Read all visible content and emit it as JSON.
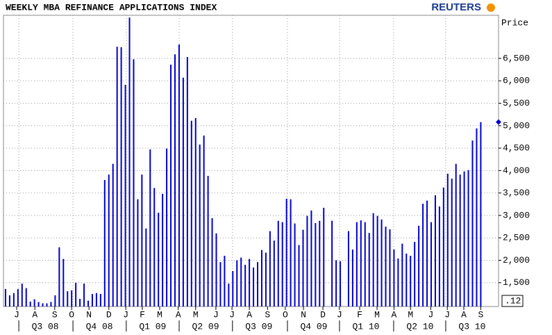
{
  "chart_data": {
    "type": "bar",
    "title": "WEEKLY MBA REFINANCE APPLICATIONS  INDEX",
    "logo": "REUTERS",
    "y_axis_label": "Price",
    "corner_label": ".12",
    "color": "#0000cc",
    "grid": true,
    "values": [
      1360,
      1220,
      1270,
      1360,
      1480,
      1380,
      1080,
      1130,
      1070,
      1040,
      1040,
      1070,
      1220,
      2290,
      2030,
      1310,
      1330,
      1500,
      1140,
      1480,
      1100,
      1250,
      1270,
      1250,
      3790,
      3910,
      4150,
      6760,
      6750,
      5910,
      7410,
      6480,
      3360,
      3910,
      2710,
      4470,
      3610,
      3060,
      3480,
      4490,
      6360,
      6590,
      6810,
      6070,
      6530,
      5110,
      5170,
      4580,
      4780,
      3880,
      2940,
      2600,
      1960,
      2100,
      1480,
      1760,
      2000,
      2060,
      1900,
      2030,
      1840,
      1960,
      2230,
      2170,
      2650,
      2440,
      2880,
      2850,
      3370,
      3360,
      2820,
      2340,
      2680,
      2990,
      3110,
      2830,
      2880,
      3170,
      null,
      2880,
      2000,
      1980,
      null,
      2650,
      2240,
      2850,
      2890,
      2850,
      2610,
      3050,
      2990,
      2910,
      2750,
      2690,
      2240,
      2040,
      2370,
      2150,
      2100,
      2410,
      2770,
      3260,
      3330,
      2850,
      3450,
      3200,
      3620,
      3930,
      3820,
      4150,
      3910,
      3980,
      4010,
      4670,
      4940,
      5080
    ],
    "xlim": [
      -0.5,
      119.3
    ],
    "ylim": [
      970,
      7460
    ],
    "yticks": [
      {
        "value": 1500,
        "label": "1,500"
      },
      {
        "value": 2000,
        "label": "2,000"
      },
      {
        "value": 2500,
        "label": "2,500"
      },
      {
        "value": 3000,
        "label": "3,000"
      },
      {
        "value": 3500,
        "label": "3,500"
      },
      {
        "value": 4000,
        "label": "4,000"
      },
      {
        "value": 4500,
        "label": "4,500"
      },
      {
        "value": 5000,
        "label": "5,000"
      },
      {
        "value": 5500,
        "label": "5,500"
      },
      {
        "value": 6000,
        "label": "6,000"
      },
      {
        "value": 6500,
        "label": "6,500"
      }
    ],
    "xticks": [
      {
        "value": 2.7,
        "label": "J"
      },
      {
        "value": 7.1,
        "label": "A"
      },
      {
        "value": 11.9,
        "label": "S"
      },
      {
        "value": 16,
        "label": "O"
      },
      {
        "value": 20.2,
        "label": "N"
      },
      {
        "value": 25,
        "label": "D"
      },
      {
        "value": 29.1,
        "label": "J"
      },
      {
        "value": 33.1,
        "label": "F"
      },
      {
        "value": 37.3,
        "label": "M"
      },
      {
        "value": 41.8,
        "label": "A"
      },
      {
        "value": 46,
        "label": "M"
      },
      {
        "value": 50.9,
        "label": "J"
      },
      {
        "value": 54.8,
        "label": "J"
      },
      {
        "value": 59,
        "label": "A"
      },
      {
        "value": 63.4,
        "label": "S"
      },
      {
        "value": 67.7,
        "label": "O"
      },
      {
        "value": 72.1,
        "label": "N"
      },
      {
        "value": 76.8,
        "label": "D"
      },
      {
        "value": 80.8,
        "label": "J"
      },
      {
        "value": 85.7,
        "label": "F"
      },
      {
        "value": 89.9,
        "label": "M"
      },
      {
        "value": 94,
        "label": "A"
      },
      {
        "value": 98,
        "label": "M"
      },
      {
        "value": 102.9,
        "label": "J"
      },
      {
        "value": 106.9,
        "label": "J"
      },
      {
        "value": 110.9,
        "label": "A"
      },
      {
        "value": 115,
        "label": "S"
      }
    ],
    "xticks2": [
      {
        "value": 9.6,
        "label": "Q3 08"
      },
      {
        "value": 22.7,
        "label": "Q4 08"
      },
      {
        "value": 35.6,
        "label": "Q1 09"
      },
      {
        "value": 48.4,
        "label": "Q2 09"
      },
      {
        "value": 61.3,
        "label": "Q3 09"
      },
      {
        "value": 74.6,
        "label": "Q4 09"
      },
      {
        "value": 87.2,
        "label": "Q1 10"
      },
      {
        "value": 100.3,
        "label": "Q2 10"
      },
      {
        "value": 112.9,
        "label": "Q3 10"
      }
    ]
  }
}
